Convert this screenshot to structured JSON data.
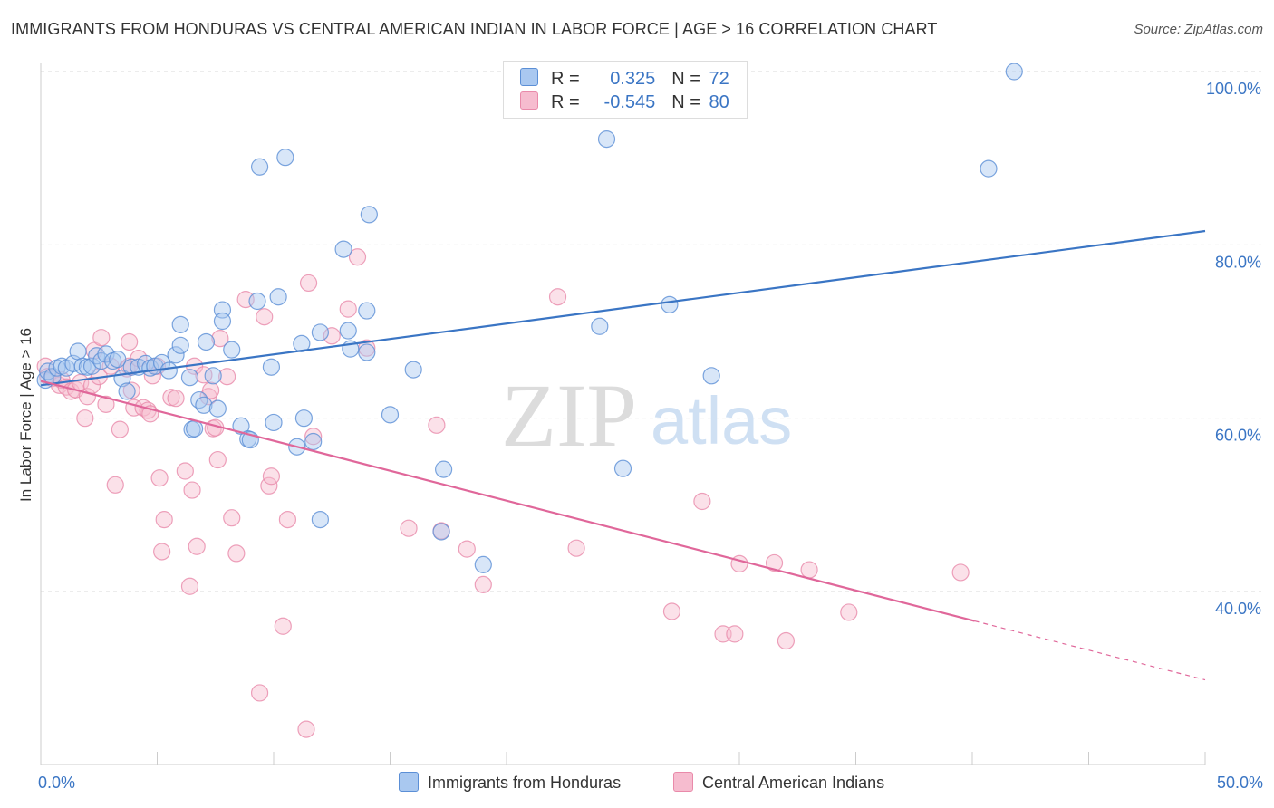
{
  "title": "IMMIGRANTS FROM HONDURAS VS CENTRAL AMERICAN INDIAN IN LABOR FORCE | AGE > 16 CORRELATION CHART",
  "source": "Source: ZipAtlas.com",
  "watermark": {
    "zip": "ZIP",
    "atlas": "atlas"
  },
  "legend": {
    "r_label": "R =",
    "n_label": "N =",
    "rows": [
      {
        "r": "0.325",
        "n": "72"
      },
      {
        "r": "-0.545",
        "n": "80"
      }
    ]
  },
  "chart_data": {
    "type": "scatter",
    "title": "IMMIGRANTS FROM HONDURAS VS CENTRAL AMERICAN INDIAN IN LABOR FORCE | AGE > 16 CORRELATION CHART",
    "xlabel": "",
    "ylabel": "In Labor Force | Age > 16",
    "xlim": [
      0,
      50
    ],
    "ylim": [
      22,
      102
    ],
    "x_tick_labels": [
      "0.0%",
      "50.0%"
    ],
    "y_ticks": [
      40,
      60,
      80,
      100
    ],
    "y_tick_labels": [
      "40.0%",
      "60.0%",
      "80.0%",
      "100.0%"
    ],
    "grid": true,
    "legend_position": "top-center",
    "colors": {
      "blue_fill": "#a9c8f0",
      "blue_stroke": "#5b8fd6",
      "blue_line": "#3a75c4",
      "pink_fill": "#f6bccf",
      "pink_stroke": "#e98aaa",
      "pink_line": "#e0679a",
      "axis_text": "#3a75c4"
    },
    "series": [
      {
        "name": "Immigrants from Honduras",
        "r": 0.325,
        "n": 72,
        "trend": {
          "x": [
            0,
            50
          ],
          "y": [
            63.8,
            81.6
          ],
          "dashed_from": null
        },
        "points": [
          [
            0.2,
            64.4
          ],
          [
            0.3,
            65.4
          ],
          [
            0.5,
            64.8
          ],
          [
            0.7,
            65.8
          ],
          [
            0.9,
            66.0
          ],
          [
            1.1,
            65.8
          ],
          [
            1.4,
            66.3
          ],
          [
            1.6,
            67.7
          ],
          [
            1.8,
            66.0
          ],
          [
            2.0,
            65.9
          ],
          [
            2.2,
            66.0
          ],
          [
            2.4,
            67.2
          ],
          [
            2.6,
            66.6
          ],
          [
            2.8,
            67.4
          ],
          [
            3.1,
            66.6
          ],
          [
            3.3,
            66.8
          ],
          [
            3.5,
            64.6
          ],
          [
            3.7,
            63.1
          ],
          [
            3.9,
            65.9
          ],
          [
            4.2,
            65.9
          ],
          [
            4.5,
            66.3
          ],
          [
            4.7,
            65.8
          ],
          [
            4.9,
            66.0
          ],
          [
            5.2,
            66.4
          ],
          [
            5.5,
            65.5
          ],
          [
            5.8,
            67.3
          ],
          [
            6.0,
            68.4
          ],
          [
            6.0,
            70.8
          ],
          [
            6.4,
            64.7
          ],
          [
            6.5,
            58.7
          ],
          [
            6.6,
            58.8
          ],
          [
            6.8,
            62.1
          ],
          [
            7.0,
            61.5
          ],
          [
            7.1,
            68.8
          ],
          [
            7.4,
            64.9
          ],
          [
            7.6,
            61.1
          ],
          [
            7.8,
            72.5
          ],
          [
            7.8,
            71.2
          ],
          [
            8.2,
            67.9
          ],
          [
            8.6,
            59.1
          ],
          [
            8.9,
            57.6
          ],
          [
            9.0,
            57.5
          ],
          [
            9.3,
            73.5
          ],
          [
            9.4,
            89.0
          ],
          [
            9.9,
            65.9
          ],
          [
            10.0,
            59.5
          ],
          [
            10.2,
            74.0
          ],
          [
            10.5,
            90.1
          ],
          [
            11.0,
            56.7
          ],
          [
            11.2,
            68.6
          ],
          [
            11.3,
            60.0
          ],
          [
            11.7,
            57.3
          ],
          [
            12.0,
            48.3
          ],
          [
            12.0,
            69.9
          ],
          [
            13.0,
            79.5
          ],
          [
            13.2,
            70.1
          ],
          [
            13.3,
            68.0
          ],
          [
            14.0,
            67.6
          ],
          [
            14.0,
            72.4
          ],
          [
            14.1,
            83.5
          ],
          [
            15.0,
            60.4
          ],
          [
            16.0,
            65.6
          ],
          [
            17.3,
            54.1
          ],
          [
            17.2,
            46.9
          ],
          [
            19.0,
            43.1
          ],
          [
            24.0,
            70.6
          ],
          [
            24.3,
            92.2
          ],
          [
            25.0,
            54.2
          ],
          [
            27.0,
            73.1
          ],
          [
            28.8,
            64.9
          ],
          [
            40.7,
            88.8
          ],
          [
            41.8,
            100.0
          ]
        ]
      },
      {
        "name": "Central American Indians",
        "r": -0.545,
        "n": 80,
        "trend": {
          "x": [
            0,
            40.1
          ],
          "y": [
            64.3,
            36.6
          ],
          "dashed_to": [
            50,
            29.8
          ]
        },
        "points": [
          [
            0.2,
            66.0
          ],
          [
            0.3,
            64.8
          ],
          [
            0.5,
            64.6
          ],
          [
            0.8,
            63.8
          ],
          [
            0.9,
            64.4
          ],
          [
            1.1,
            63.6
          ],
          [
            1.3,
            63.1
          ],
          [
            1.5,
            63.3
          ],
          [
            1.7,
            64.1
          ],
          [
            1.9,
            60.0
          ],
          [
            2.0,
            62.5
          ],
          [
            2.2,
            63.8
          ],
          [
            2.3,
            67.8
          ],
          [
            2.5,
            64.8
          ],
          [
            2.6,
            69.3
          ],
          [
            2.8,
            61.6
          ],
          [
            3.0,
            66.0
          ],
          [
            3.2,
            52.3
          ],
          [
            3.4,
            58.7
          ],
          [
            3.7,
            65.7
          ],
          [
            3.8,
            66.0
          ],
          [
            3.8,
            68.8
          ],
          [
            3.9,
            63.2
          ],
          [
            4.0,
            61.2
          ],
          [
            4.2,
            66.9
          ],
          [
            4.4,
            61.2
          ],
          [
            4.6,
            60.9
          ],
          [
            4.7,
            60.5
          ],
          [
            4.8,
            64.9
          ],
          [
            5.0,
            66.0
          ],
          [
            5.1,
            53.1
          ],
          [
            5.2,
            44.6
          ],
          [
            5.3,
            48.3
          ],
          [
            5.6,
            62.4
          ],
          [
            5.8,
            62.3
          ],
          [
            6.2,
            53.9
          ],
          [
            6.4,
            40.6
          ],
          [
            6.5,
            51.7
          ],
          [
            6.6,
            66.0
          ],
          [
            6.7,
            45.2
          ],
          [
            7.0,
            65.0
          ],
          [
            7.2,
            62.5
          ],
          [
            7.3,
            63.2
          ],
          [
            7.4,
            58.8
          ],
          [
            7.5,
            58.9
          ],
          [
            7.6,
            55.2
          ],
          [
            7.7,
            69.2
          ],
          [
            8.0,
            64.8
          ],
          [
            8.2,
            48.5
          ],
          [
            8.4,
            44.4
          ],
          [
            8.8,
            73.7
          ],
          [
            9.4,
            28.3
          ],
          [
            9.6,
            71.7
          ],
          [
            9.8,
            52.2
          ],
          [
            9.9,
            53.3
          ],
          [
            10.4,
            36.0
          ],
          [
            10.6,
            48.3
          ],
          [
            11.4,
            24.1
          ],
          [
            11.5,
            75.6
          ],
          [
            11.7,
            57.9
          ],
          [
            12.5,
            69.5
          ],
          [
            13.2,
            72.6
          ],
          [
            13.6,
            78.6
          ],
          [
            14.0,
            68.1
          ],
          [
            15.8,
            47.3
          ],
          [
            17.0,
            59.2
          ],
          [
            17.2,
            47.0
          ],
          [
            18.3,
            44.9
          ],
          [
            19.0,
            40.8
          ],
          [
            22.2,
            74.0
          ],
          [
            23.0,
            45.0
          ],
          [
            27.1,
            37.7
          ],
          [
            28.4,
            50.4
          ],
          [
            29.3,
            35.1
          ],
          [
            29.8,
            35.1
          ],
          [
            30.0,
            43.2
          ],
          [
            31.5,
            43.3
          ],
          [
            32.0,
            34.3
          ],
          [
            33.0,
            42.5
          ],
          [
            34.7,
            37.6
          ],
          [
            39.5,
            42.2
          ]
        ]
      }
    ]
  },
  "bottom_legend": [
    "Immigrants from Honduras",
    "Central American Indians"
  ]
}
